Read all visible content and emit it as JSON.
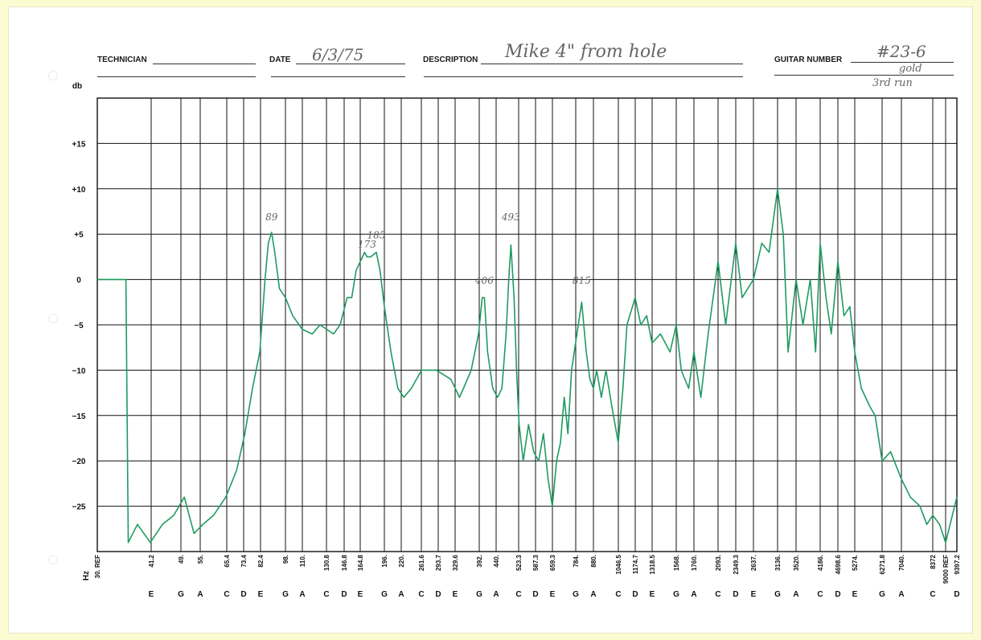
{
  "header": {
    "technician_label": "TECHNICIAN",
    "technician_value": "",
    "date_label": "DATE",
    "date_value": "6/3/75",
    "description_label": "DESCRIPTION",
    "description_value": "Mike 4\" from hole",
    "guitar_label": "GUITAR NUMBER",
    "guitar_value": "#23-6",
    "note_1": "gold",
    "note_2": "3rd run"
  },
  "colors": {
    "trace": "#1f9b62",
    "grid": "#111111",
    "paper": "#ffffff",
    "background": "#fbfbd2"
  },
  "chart_data": {
    "type": "line",
    "title": "",
    "xlabel": "Hz",
    "ylabel": "db",
    "ylim": [
      -30,
      20
    ],
    "y_ticks": [
      {
        "v": 15,
        "label": "+15"
      },
      {
        "v": 10,
        "label": "+10"
      },
      {
        "v": 5,
        "label": "+5"
      },
      {
        "v": 0,
        "label": "0"
      },
      {
        "v": -5,
        "label": "−5"
      },
      {
        "v": -10,
        "label": "−10"
      },
      {
        "v": -15,
        "label": "−15"
      },
      {
        "v": -20,
        "label": "−20"
      },
      {
        "v": -25,
        "label": "−25"
      }
    ],
    "x_scale": "log (musical pitch)",
    "x_ticks": [
      {
        "note": "",
        "freq": "30. REF"
      },
      {
        "note": "E",
        "freq": "41.2"
      },
      {
        "note": "G",
        "freq": "49."
      },
      {
        "note": "A",
        "freq": "55."
      },
      {
        "note": "C",
        "freq": "65.4"
      },
      {
        "note": "D",
        "freq": "73.4"
      },
      {
        "note": "E",
        "freq": "82.4"
      },
      {
        "note": "G",
        "freq": "98."
      },
      {
        "note": "A",
        "freq": "110."
      },
      {
        "note": "C",
        "freq": "130.8"
      },
      {
        "note": "D",
        "freq": "146.8"
      },
      {
        "note": "E",
        "freq": "164.8"
      },
      {
        "note": "G",
        "freq": "196."
      },
      {
        "note": "A",
        "freq": "220."
      },
      {
        "note": "C",
        "freq": "261.6"
      },
      {
        "note": "D",
        "freq": "293.7"
      },
      {
        "note": "E",
        "freq": "329.6"
      },
      {
        "note": "G",
        "freq": "392."
      },
      {
        "note": "A",
        "freq": "440."
      },
      {
        "note": "C",
        "freq": "523.3"
      },
      {
        "note": "D",
        "freq": "587.3"
      },
      {
        "note": "E",
        "freq": "659.3"
      },
      {
        "note": "G",
        "freq": "784."
      },
      {
        "note": "A",
        "freq": "880."
      },
      {
        "note": "C",
        "freq": "1046.5"
      },
      {
        "note": "D",
        "freq": "1174.7"
      },
      {
        "note": "E",
        "freq": "1318.5"
      },
      {
        "note": "G",
        "freq": "1568."
      },
      {
        "note": "A",
        "freq": "1760."
      },
      {
        "note": "C",
        "freq": "2093."
      },
      {
        "note": "D",
        "freq": "2349.3"
      },
      {
        "note": "E",
        "freq": "2637."
      },
      {
        "note": "G",
        "freq": "3136."
      },
      {
        "note": "A",
        "freq": "3520."
      },
      {
        "note": "C",
        "freq": "4186."
      },
      {
        "note": "D",
        "freq": "4698.6"
      },
      {
        "note": "E",
        "freq": "5274."
      },
      {
        "note": "G",
        "freq": "6271.8"
      },
      {
        "note": "A",
        "freq": "7040."
      },
      {
        "note": "C",
        "freq": "8372"
      },
      {
        "note": "",
        "freq": "9000 REF"
      },
      {
        "note": "D",
        "freq": "9397.2"
      }
    ],
    "annotations": [
      {
        "text": "89",
        "x": 89,
        "y": 6
      },
      {
        "text": "173",
        "x": 173,
        "y": 3
      },
      {
        "text": "185",
        "x": 185,
        "y": 4
      },
      {
        "text": "406",
        "x": 406,
        "y": -1
      },
      {
        "text": "493",
        "x": 493,
        "y": 6
      },
      {
        "text": "815",
        "x": 815,
        "y": -1
      }
    ],
    "series": [
      {
        "points": [
          [
            30,
            0
          ],
          [
            34,
            0
          ],
          [
            35.5,
            0
          ],
          [
            36,
            -29
          ],
          [
            38,
            -27
          ],
          [
            41,
            -29
          ],
          [
            44,
            -27
          ],
          [
            47,
            -26
          ],
          [
            50,
            -24
          ],
          [
            53,
            -28
          ],
          [
            56,
            -27
          ],
          [
            60,
            -26
          ],
          [
            65,
            -24
          ],
          [
            70,
            -21
          ],
          [
            74,
            -17
          ],
          [
            78,
            -12
          ],
          [
            82,
            -8
          ],
          [
            85,
            0
          ],
          [
            87,
            4
          ],
          [
            89,
            5.2
          ],
          [
            91,
            3
          ],
          [
            94,
            -1
          ],
          [
            98,
            -2
          ],
          [
            103,
            -4
          ],
          [
            110,
            -5.5
          ],
          [
            118,
            -6
          ],
          [
            125,
            -5
          ],
          [
            131,
            -5.5
          ],
          [
            137,
            -6
          ],
          [
            143,
            -5
          ],
          [
            150,
            -2
          ],
          [
            155,
            -2
          ],
          [
            160,
            1
          ],
          [
            165,
            2
          ],
          [
            170,
            3
          ],
          [
            173,
            2.5
          ],
          [
            178,
            2.5
          ],
          [
            185,
            3
          ],
          [
            190,
            1
          ],
          [
            196,
            -3
          ],
          [
            205,
            -8
          ],
          [
            215,
            -12
          ],
          [
            225,
            -13
          ],
          [
            240,
            -12
          ],
          [
            262,
            -10
          ],
          [
            290,
            -10
          ],
          [
            320,
            -11
          ],
          [
            330,
            -12
          ],
          [
            340,
            -13
          ],
          [
            350,
            -12
          ],
          [
            370,
            -10
          ],
          [
            390,
            -6
          ],
          [
            400,
            -2
          ],
          [
            406,
            -2
          ],
          [
            415,
            -8
          ],
          [
            430,
            -12
          ],
          [
            445,
            -13
          ],
          [
            460,
            -12
          ],
          [
            475,
            -6
          ],
          [
            485,
            0
          ],
          [
            493,
            3.8
          ],
          [
            505,
            -2
          ],
          [
            515,
            -10
          ],
          [
            525,
            -16
          ],
          [
            540,
            -20
          ],
          [
            560,
            -16
          ],
          [
            580,
            -19
          ],
          [
            600,
            -20
          ],
          [
            620,
            -17
          ],
          [
            640,
            -22
          ],
          [
            659,
            -25
          ],
          [
            680,
            -20
          ],
          [
            700,
            -18
          ],
          [
            720,
            -13
          ],
          [
            740,
            -17
          ],
          [
            760,
            -10
          ],
          [
            790,
            -6
          ],
          [
            815,
            -2.5
          ],
          [
            840,
            -8
          ],
          [
            860,
            -11
          ],
          [
            880,
            -12
          ],
          [
            900,
            -10
          ],
          [
            930,
            -13
          ],
          [
            960,
            -10
          ],
          [
            1000,
            -14
          ],
          [
            1046,
            -18
          ],
          [
            1080,
            -12
          ],
          [
            1110,
            -5
          ],
          [
            1174,
            -2
          ],
          [
            1220,
            -5
          ],
          [
            1270,
            -4
          ],
          [
            1318,
            -7
          ],
          [
            1400,
            -6
          ],
          [
            1500,
            -8
          ],
          [
            1568,
            -5
          ],
          [
            1620,
            -10
          ],
          [
            1700,
            -12
          ],
          [
            1760,
            -8
          ],
          [
            1850,
            -13
          ],
          [
            1950,
            -6
          ],
          [
            2093,
            2
          ],
          [
            2200,
            -5
          ],
          [
            2349,
            4
          ],
          [
            2450,
            -2
          ],
          [
            2637,
            0
          ],
          [
            2800,
            4
          ],
          [
            2950,
            3
          ],
          [
            3136,
            10
          ],
          [
            3250,
            5
          ],
          [
            3350,
            -8
          ],
          [
            3520,
            0
          ],
          [
            3700,
            -5
          ],
          [
            3900,
            0
          ],
          [
            4050,
            -8
          ],
          [
            4186,
            4
          ],
          [
            4350,
            -2
          ],
          [
            4500,
            -6
          ],
          [
            4698,
            2
          ],
          [
            4900,
            -4
          ],
          [
            5100,
            -3
          ],
          [
            5274,
            -8
          ],
          [
            5500,
            -12
          ],
          [
            5800,
            -14
          ],
          [
            6000,
            -15
          ],
          [
            6271,
            -20
          ],
          [
            6600,
            -19
          ],
          [
            7040,
            -22
          ],
          [
            7400,
            -24
          ],
          [
            7800,
            -25
          ],
          [
            8100,
            -27
          ],
          [
            8372,
            -26
          ],
          [
            8700,
            -27
          ],
          [
            9000,
            -29
          ],
          [
            9397,
            -24
          ]
        ]
      }
    ]
  }
}
